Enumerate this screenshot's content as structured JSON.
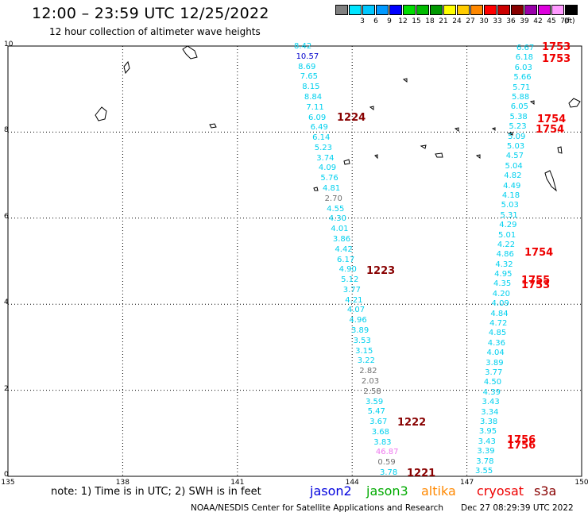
{
  "title": "12:00 – 23:59 UTC 12/25/2022",
  "subtitle": "12 hour collection of altimeter wave heights",
  "scale": {
    "unit": "(ft)",
    "levels": [
      {
        "label": "",
        "color": "#808080"
      },
      {
        "label": "3",
        "color": "#00e5ff"
      },
      {
        "label": "6",
        "color": "#00c8ff"
      },
      {
        "label": "9",
        "color": "#0099ff"
      },
      {
        "label": "12",
        "color": "#0000ff"
      },
      {
        "label": "15",
        "color": "#00dd00"
      },
      {
        "label": "18",
        "color": "#00bb00"
      },
      {
        "label": "21",
        "color": "#009900"
      },
      {
        "label": "24",
        "color": "#ffff00"
      },
      {
        "label": "27",
        "color": "#ffcc00"
      },
      {
        "label": "30",
        "color": "#ff8800"
      },
      {
        "label": "33",
        "color": "#ff0000"
      },
      {
        "label": "36",
        "color": "#cc0000"
      },
      {
        "label": "39",
        "color": "#880000"
      },
      {
        "label": "42",
        "color": "#9900aa"
      },
      {
        "label": "45",
        "color": "#dd00dd"
      },
      {
        "label": "70",
        "color": "#ff99ff"
      },
      {
        "label": "",
        "color": "#000000"
      }
    ]
  },
  "axes": {
    "x_ticks": [
      "135",
      "138",
      "141",
      "144",
      "147",
      "150"
    ],
    "y_ticks": [
      "10",
      "8",
      "6",
      "4",
      "2",
      "0"
    ],
    "x_range": [
      135,
      150
    ],
    "y_range": [
      0,
      10
    ]
  },
  "note": "note:  1) Time is in UTC;  2) SWH is in feet",
  "missions": [
    {
      "name": "jason2",
      "color": "#0000dd"
    },
    {
      "name": "jason3",
      "color": "#00aa00"
    },
    {
      "name": "altika",
      "color": "#ff8800"
    },
    {
      "name": "cryosat",
      "color": "#ee0000"
    },
    {
      "name": "s3a",
      "color": "#880000"
    }
  ],
  "credit": "NOAA/NESDIS Center for Satellite Applications and Research",
  "timestamp": "Dec 27 08:29:39 UTC 2022",
  "colors": {
    "cyan": "#00d0ee",
    "blue": "#0000cc",
    "gray": "#707070",
    "pink": "#ee77ee",
    "red": "#ee0000",
    "darkred": "#880000"
  },
  "track1": [
    {
      "v": "8.42",
      "c": "cyan"
    },
    {
      "v": "10.57",
      "c": "blue"
    },
    {
      "v": "8.69",
      "c": "cyan"
    },
    {
      "v": "7.65",
      "c": "cyan"
    },
    {
      "v": "8.15",
      "c": "cyan"
    },
    {
      "v": "8.84",
      "c": "cyan"
    },
    {
      "v": "7.11",
      "c": "cyan"
    },
    {
      "v": "6.09",
      "c": "cyan"
    },
    {
      "v": "6.49",
      "c": "cyan"
    },
    {
      "v": "6.14",
      "c": "cyan"
    },
    {
      "v": "5.23",
      "c": "cyan"
    },
    {
      "v": "3.74",
      "c": "cyan"
    },
    {
      "v": "4.09",
      "c": "cyan"
    },
    {
      "v": "5.76",
      "c": "cyan"
    },
    {
      "v": "4.81",
      "c": "cyan"
    },
    {
      "v": "2.70",
      "c": "gray"
    },
    {
      "v": "4.55",
      "c": "cyan"
    },
    {
      "v": "4.30",
      "c": "cyan"
    },
    {
      "v": "4.01",
      "c": "cyan"
    },
    {
      "v": "3.86",
      "c": "cyan"
    },
    {
      "v": "4.42",
      "c": "cyan"
    },
    {
      "v": "6.17",
      "c": "cyan"
    },
    {
      "v": "4.90",
      "c": "cyan"
    },
    {
      "v": "5.12",
      "c": "cyan"
    },
    {
      "v": "3.77",
      "c": "cyan"
    },
    {
      "v": "4.21",
      "c": "cyan"
    },
    {
      "v": "4.07",
      "c": "cyan"
    },
    {
      "v": "4.96",
      "c": "cyan"
    },
    {
      "v": "3.89",
      "c": "cyan"
    },
    {
      "v": "3.53",
      "c": "cyan"
    },
    {
      "v": "3.15",
      "c": "cyan"
    },
    {
      "v": "3.22",
      "c": "cyan"
    },
    {
      "v": "2.82",
      "c": "gray"
    },
    {
      "v": "2.03",
      "c": "gray"
    },
    {
      "v": "2.58",
      "c": "gray"
    },
    {
      "v": "3.59",
      "c": "cyan"
    },
    {
      "v": "5.47",
      "c": "cyan"
    },
    {
      "v": "3.67",
      "c": "cyan"
    },
    {
      "v": "3.68",
      "c": "cyan"
    },
    {
      "v": "3.83",
      "c": "cyan"
    },
    {
      "v": "46.87",
      "c": "pink"
    },
    {
      "v": "0.59",
      "c": "gray"
    },
    {
      "v": "3.78",
      "c": "cyan"
    }
  ],
  "track1_times": [
    "1224",
    "1223",
    "1222",
    "1221"
  ],
  "track2": [
    {
      "v": "6.67",
      "c": "cyan"
    },
    {
      "v": "6.18",
      "c": "cyan"
    },
    {
      "v": "6.03",
      "c": "cyan"
    },
    {
      "v": "5.66",
      "c": "cyan"
    },
    {
      "v": "5.71",
      "c": "cyan"
    },
    {
      "v": "5.88",
      "c": "cyan"
    },
    {
      "v": "6.05",
      "c": "cyan"
    },
    {
      "v": "5.38",
      "c": "cyan"
    },
    {
      "v": "5.23",
      "c": "cyan"
    },
    {
      "v": "5.09",
      "c": "cyan"
    },
    {
      "v": "5.03",
      "c": "cyan"
    },
    {
      "v": "4.57",
      "c": "cyan"
    },
    {
      "v": "5.04",
      "c": "cyan"
    },
    {
      "v": "4.82",
      "c": "cyan"
    },
    {
      "v": "4.49",
      "c": "cyan"
    },
    {
      "v": "4.18",
      "c": "cyan"
    },
    {
      "v": "5.03",
      "c": "cyan"
    },
    {
      "v": "5.31",
      "c": "cyan"
    },
    {
      "v": "4.29",
      "c": "cyan"
    },
    {
      "v": "5.01",
      "c": "cyan"
    },
    {
      "v": "4.22",
      "c": "cyan"
    },
    {
      "v": "4.86",
      "c": "cyan"
    },
    {
      "v": "4.32",
      "c": "cyan"
    },
    {
      "v": "4.95",
      "c": "cyan"
    },
    {
      "v": "4.35",
      "c": "cyan"
    },
    {
      "v": "4.20",
      "c": "cyan"
    },
    {
      "v": "4.09",
      "c": "cyan"
    },
    {
      "v": "4.84",
      "c": "cyan"
    },
    {
      "v": "4.72",
      "c": "cyan"
    },
    {
      "v": "4.85",
      "c": "cyan"
    },
    {
      "v": "4.36",
      "c": "cyan"
    },
    {
      "v": "4.04",
      "c": "cyan"
    },
    {
      "v": "3.89",
      "c": "cyan"
    },
    {
      "v": "3.77",
      "c": "cyan"
    },
    {
      "v": "4.50",
      "c": "cyan"
    },
    {
      "v": "4.39",
      "c": "cyan"
    },
    {
      "v": "3.43",
      "c": "cyan"
    },
    {
      "v": "3.34",
      "c": "cyan"
    },
    {
      "v": "3.38",
      "c": "cyan"
    },
    {
      "v": "3.95",
      "c": "cyan"
    },
    {
      "v": "3.43",
      "c": "cyan"
    },
    {
      "v": "3.39",
      "c": "cyan"
    },
    {
      "v": "3.78",
      "c": "cyan"
    },
    {
      "v": "3.55",
      "c": "cyan"
    }
  ],
  "track2_times": [
    "1753",
    "1753",
    "1754",
    "1754",
    "1754",
    "1755",
    "1753",
    "1756",
    "1756"
  ]
}
